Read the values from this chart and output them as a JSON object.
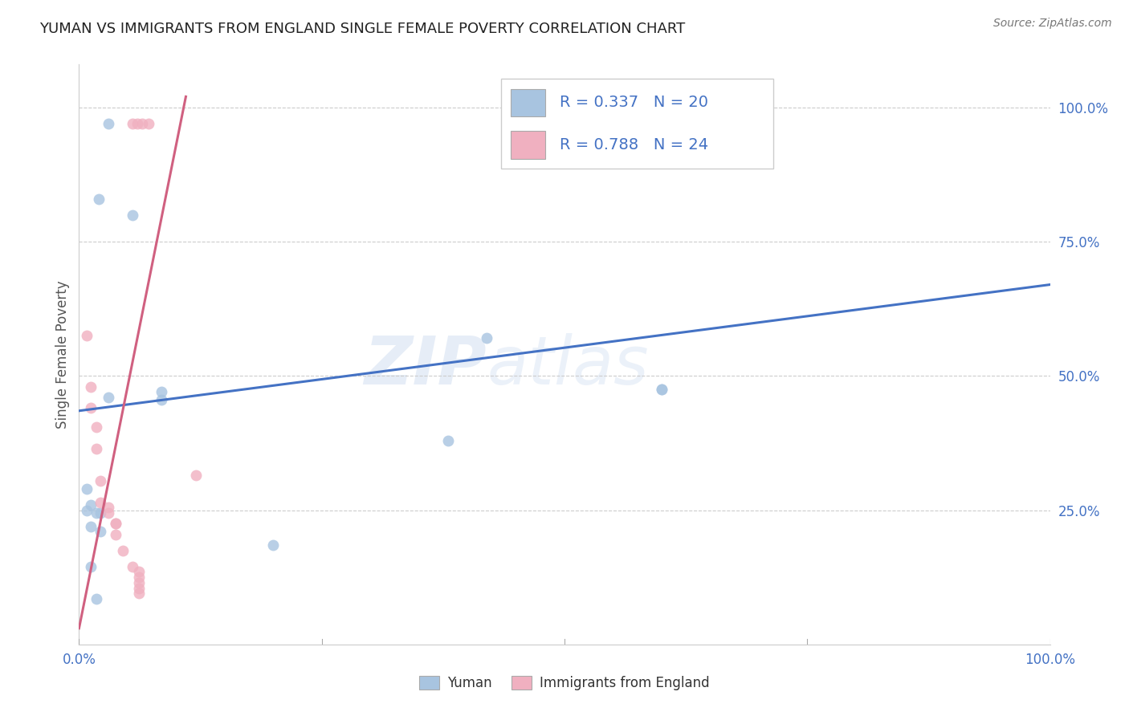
{
  "title": "YUMAN VS IMMIGRANTS FROM ENGLAND SINGLE FEMALE POVERTY CORRELATION CHART",
  "source": "Source: ZipAtlas.com",
  "ylabel": "Single Female Poverty",
  "R_blue": 0.337,
  "N_blue": 20,
  "R_pink": 0.788,
  "N_pink": 24,
  "xlim": [
    0.0,
    1.0
  ],
  "ylim": [
    0.0,
    1.08
  ],
  "yticks": [
    0.25,
    0.5,
    0.75,
    1.0
  ],
  "ytick_labels": [
    "25.0%",
    "50.0%",
    "75.0%",
    "100.0%"
  ],
  "xticks": [
    0.0,
    0.25,
    0.5,
    0.75,
    1.0
  ],
  "xtick_labels": [
    "0.0%",
    "",
    "",
    "",
    "100.0%"
  ],
  "blue_scatter_color": "#a8c4e0",
  "pink_scatter_color": "#f0b0c0",
  "blue_line_color": "#4472c4",
  "pink_line_color": "#d06080",
  "tick_label_color": "#4472c4",
  "watermark": "ZIPatlas",
  "blue_scatter_x": [
    0.02,
    0.055,
    0.008,
    0.008,
    0.012,
    0.012,
    0.018,
    0.022,
    0.022,
    0.03,
    0.085,
    0.085,
    0.38,
    0.42,
    0.6,
    0.6,
    0.2,
    0.012,
    0.018,
    0.03
  ],
  "blue_scatter_y": [
    0.83,
    0.8,
    0.29,
    0.25,
    0.26,
    0.22,
    0.245,
    0.245,
    0.21,
    0.46,
    0.455,
    0.47,
    0.38,
    0.57,
    0.475,
    0.475,
    0.185,
    0.145,
    0.085,
    0.97
  ],
  "pink_scatter_x": [
    0.055,
    0.06,
    0.065,
    0.072,
    0.008,
    0.012,
    0.012,
    0.018,
    0.018,
    0.022,
    0.022,
    0.03,
    0.03,
    0.038,
    0.038,
    0.038,
    0.045,
    0.055,
    0.062,
    0.062,
    0.062,
    0.062,
    0.12,
    0.062
  ],
  "pink_scatter_y": [
    0.97,
    0.97,
    0.97,
    0.97,
    0.575,
    0.48,
    0.44,
    0.405,
    0.365,
    0.305,
    0.265,
    0.255,
    0.245,
    0.225,
    0.225,
    0.205,
    0.175,
    0.145,
    0.135,
    0.125,
    0.115,
    0.105,
    0.315,
    0.095
  ],
  "blue_trend_x": [
    0.0,
    1.0
  ],
  "blue_trend_y": [
    0.435,
    0.67
  ],
  "pink_trend_x_start": 0.0,
  "pink_trend_x_end": 0.11,
  "pink_trend_y_start": 0.03,
  "pink_trend_y_end": 1.02
}
